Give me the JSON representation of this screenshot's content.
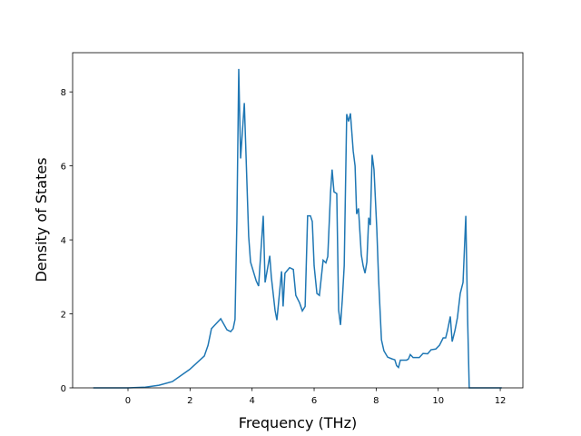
{
  "chart_data": {
    "type": "line",
    "x_label": "Frequency (THz)",
    "y_label": "Density of States",
    "x": [
      -1.12,
      0,
      0.56,
      1.0,
      1.43,
      1.99,
      2.46,
      2.58,
      2.69,
      2.99,
      3.19,
      3.31,
      3.39,
      3.45,
      3.51,
      3.57,
      3.63,
      3.75,
      3.89,
      3.95,
      4.13,
      4.21,
      4.36,
      4.42,
      4.57,
      4.62,
      4.74,
      4.8,
      4.95,
      5.0,
      5.06,
      5.21,
      5.33,
      5.41,
      5.53,
      5.62,
      5.71,
      5.79,
      5.88,
      5.94,
      6.0,
      6.09,
      6.17,
      6.29,
      6.38,
      6.44,
      6.53,
      6.58,
      6.64,
      6.73,
      6.79,
      6.85,
      6.91,
      6.97,
      7.05,
      7.11,
      7.17,
      7.26,
      7.32,
      7.37,
      7.43,
      7.52,
      7.58,
      7.64,
      7.7,
      7.76,
      7.81,
      7.87,
      7.93,
      8.02,
      8.08,
      8.17,
      8.25,
      8.37,
      8.52,
      8.6,
      8.66,
      8.72,
      8.78,
      8.98,
      9.04,
      9.1,
      9.19,
      9.39,
      9.51,
      9.66,
      9.77,
      9.92,
      10.04,
      10.16,
      10.24,
      10.3,
      10.39,
      10.45,
      10.54,
      10.62,
      10.71,
      10.8,
      10.89,
      10.95,
      11.0,
      12.05
    ],
    "series": [
      {
        "color": "#1f77b4",
        "values": [
          0,
          0,
          0.02,
          0.07,
          0.17,
          0.5,
          0.86,
          1.15,
          1.6,
          1.87,
          1.57,
          1.52,
          1.6,
          1.85,
          4.5,
          8.62,
          6.2,
          7.7,
          4.1,
          3.4,
          2.9,
          2.75,
          4.65,
          2.85,
          3.57,
          3.0,
          2.1,
          1.83,
          3.15,
          2.2,
          3.1,
          3.25,
          3.2,
          2.5,
          2.3,
          2.08,
          2.2,
          4.65,
          4.65,
          4.5,
          3.3,
          2.55,
          2.5,
          3.45,
          3.38,
          3.55,
          5.3,
          5.9,
          5.3,
          5.25,
          2.1,
          1.7,
          2.4,
          3.3,
          7.4,
          7.2,
          7.42,
          6.4,
          6.0,
          4.7,
          4.85,
          3.6,
          3.3,
          3.1,
          3.4,
          4.6,
          4.4,
          6.3,
          5.9,
          4.3,
          2.9,
          1.3,
          1.0,
          0.83,
          0.78,
          0.76,
          0.6,
          0.55,
          0.75,
          0.75,
          0.78,
          0.9,
          0.82,
          0.82,
          0.93,
          0.92,
          1.03,
          1.05,
          1.15,
          1.35,
          1.35,
          1.55,
          1.93,
          1.25,
          1.55,
          1.9,
          2.55,
          2.85,
          4.65,
          1.8,
          0,
          0
        ]
      }
    ],
    "xlim": [
      -1.785,
      12.73
    ],
    "ylim": [
      0,
      9.06
    ],
    "xticks": [
      0,
      2,
      4,
      6,
      8,
      10,
      12
    ],
    "yticks": [
      0,
      2,
      4,
      6,
      8
    ]
  }
}
